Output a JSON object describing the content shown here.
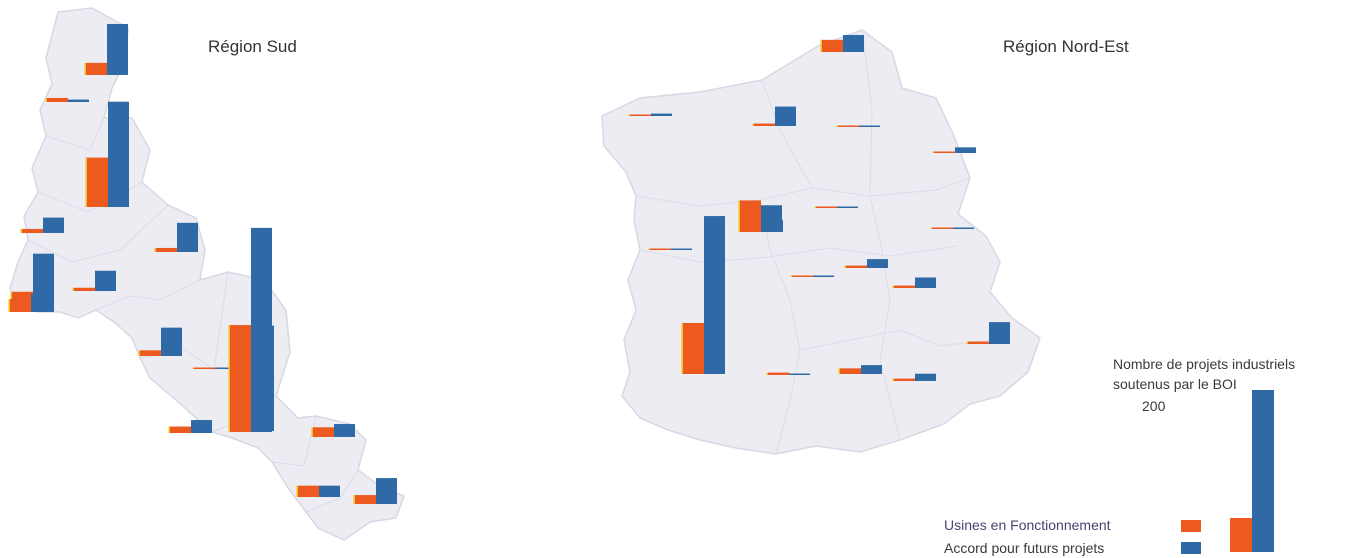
{
  "colors": {
    "usines": "#ec5a1f",
    "usines_edge": "#f3c11a",
    "accord": "#2f6aa6",
    "map_fill": "#ececf2",
    "map_stroke": "#d8d8e4",
    "boundary": "#dcdcea"
  },
  "titles": {
    "sud": "Région Sud",
    "nord_est": "Région Nord-Est"
  },
  "legend": {
    "title_line1": "Nombre de projets industriels",
    "title_line2": "soutenus par le BOI",
    "scale_value": "200",
    "usines_label": "Usines en Fonctionnement",
    "accord_label": "Accord pour futurs projets"
  },
  "chart_data": {
    "type": "bar",
    "series_names": [
      "Usines en Fonctionnement",
      "Accord pour futurs projets"
    ],
    "reference_value": 200,
    "regions": [
      {
        "region": "Région Sud",
        "values": [
          [
            15,
            63
          ],
          [
            5,
            3
          ],
          [
            61,
            130
          ],
          [
            5,
            19
          ],
          [
            5,
            36
          ],
          [
            25,
            72
          ],
          [
            4,
            25
          ],
          [
            7,
            35
          ],
          [
            53,
            130
          ],
          [
            1,
            0
          ],
          [
            8,
            16
          ],
          [
            132,
            252
          ],
          [
            12,
            16
          ],
          [
            14,
            14
          ],
          [
            11,
            32
          ],
          [
            16,
            22
          ]
        ]
      },
      {
        "region": "Région Nord-Est",
        "values": [
          [
            15,
            21
          ],
          [
            1,
            3
          ],
          [
            3,
            24
          ],
          [
            1,
            1
          ],
          [
            0,
            7
          ],
          [
            1,
            1
          ],
          [
            8,
            15
          ],
          [
            39,
            33
          ],
          [
            0,
            1
          ],
          [
            1,
            1
          ],
          [
            1,
            1
          ],
          [
            3,
            11
          ],
          [
            3,
            13
          ],
          [
            63,
            195
          ],
          [
            3,
            27
          ],
          [
            3,
            1
          ],
          [
            7,
            11
          ],
          [
            3,
            9
          ]
        ]
      }
    ]
  }
}
